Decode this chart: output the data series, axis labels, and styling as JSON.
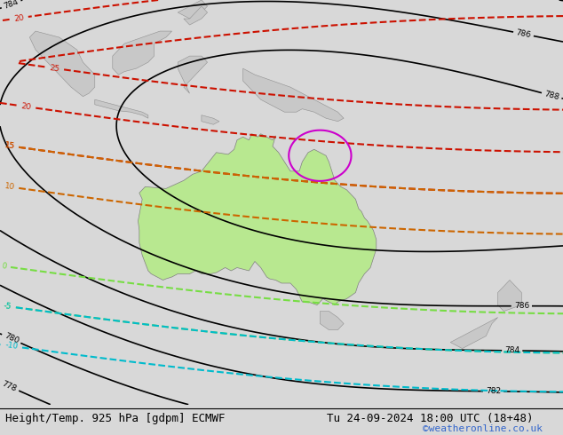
{
  "title_left": "Height/Temp. 925 hPa [gdpm] ECMWF",
  "title_right": "Tu 24-09-2024 18:00 UTC (18+48)",
  "watermark": "©weatheronline.co.uk",
  "bg_color": "#d8d8d8",
  "land_color": "#c8c8c8",
  "australia_color": "#b8e890",
  "font_size_title": 9,
  "font_size_watermark": 8,
  "colors": {
    "black_contour": "#000000",
    "red_temp": "#cc1100",
    "orange_temp": "#cc6600",
    "green_temp": "#77dd44",
    "cyan_temp": "#00bbcc",
    "magenta_temp": "#cc00cc",
    "watermark_color": "#3366cc"
  }
}
